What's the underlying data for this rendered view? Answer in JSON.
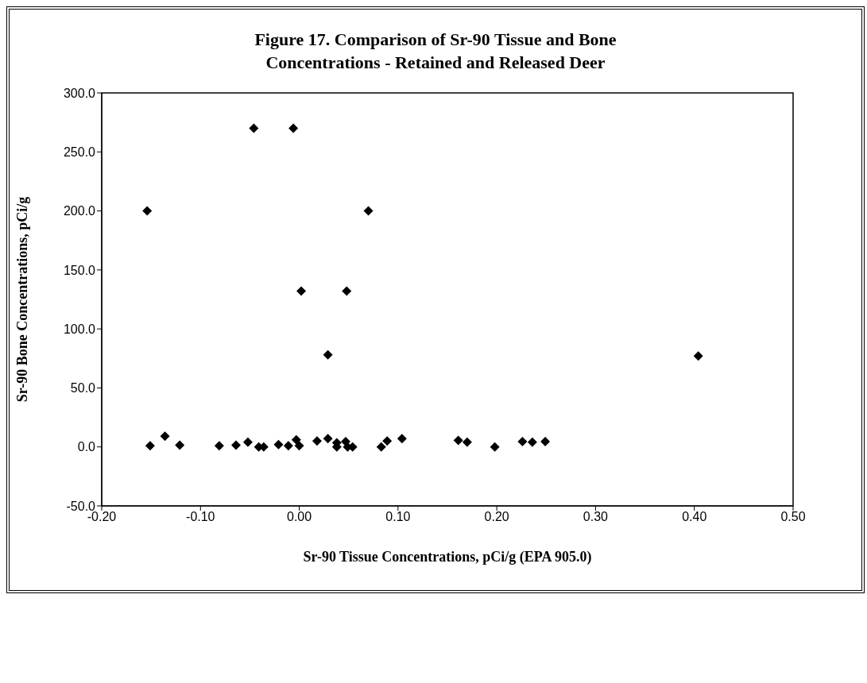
{
  "chart_data": {
    "type": "scatter",
    "title": "Figure 17.  Comparison of Sr-90 Tissue and Bone Concentrations - Retained and Released Deer",
    "xlabel": "Sr-90 Tissue Concentrations, pCi/g (EPA 905.0)",
    "ylabel": "Sr-90 Bone Concentrations, pCi/g",
    "xlim": [
      -0.2,
      0.5
    ],
    "xticks": [
      {
        "value": -0.2,
        "label": "-0.20"
      },
      {
        "value": -0.1,
        "label": "-0.10"
      },
      {
        "value": 0,
        "label": "0.00"
      },
      {
        "value": 0.1,
        "label": "0.10"
      },
      {
        "value": 0.2,
        "label": "0.20"
      },
      {
        "value": 0.3,
        "label": "0.30"
      },
      {
        "value": 0.4,
        "label": "0.40"
      },
      {
        "value": 0.5,
        "label": "0.50"
      }
    ],
    "ylim": [
      -50,
      300
    ],
    "yticks": [
      {
        "value": -50,
        "label": "-50.0"
      },
      {
        "value": 0,
        "label": "0.0"
      },
      {
        "value": 50,
        "label": "50.0"
      },
      {
        "value": 100,
        "label": "100.0"
      },
      {
        "value": 150,
        "label": "150.0"
      },
      {
        "value": 200,
        "label": "200.0"
      },
      {
        "value": 250,
        "label": "250.0"
      },
      {
        "value": 300,
        "label": "300.0"
      }
    ],
    "grid": false,
    "legend": false,
    "marker": "diamond",
    "series": [
      {
        "color": "#000000",
        "x": [
          -0.046,
          -0.006,
          -0.154,
          0.07,
          0.002,
          0.048,
          0.029,
          -0.151,
          -0.136,
          -0.121,
          -0.081,
          -0.064,
          -0.052,
          -0.041,
          -0.036,
          -0.021,
          -0.011,
          -0.003,
          0.0,
          0.018,
          0.029,
          0.038,
          0.038,
          0.047,
          0.049,
          0.054,
          0.083,
          0.089,
          0.104,
          0.161,
          0.17,
          0.198,
          0.226,
          0.236,
          0.249,
          0.404
        ],
        "values": [
          270,
          270,
          200,
          200,
          132,
          132,
          78,
          1,
          9,
          1.5,
          1,
          1.5,
          4,
          0,
          0,
          2,
          1,
          6,
          1,
          5,
          7,
          3.5,
          0,
          4.5,
          0,
          0,
          0,
          5,
          7,
          5.5,
          4,
          0,
          4.5,
          4,
          4.5,
          77
        ]
      }
    ]
  }
}
